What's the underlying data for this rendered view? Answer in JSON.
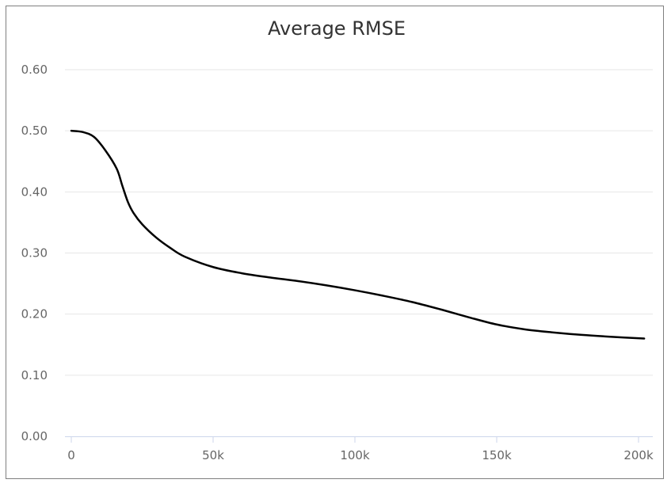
{
  "chart_data": {
    "type": "line",
    "title": "Average RMSE",
    "xlabel": "",
    "ylabel": "",
    "xlim": [
      0,
      202000
    ],
    "ylim": [
      0,
      0.6
    ],
    "grid": true,
    "y_ticks": [
      {
        "value": 0.0,
        "label": "0.00"
      },
      {
        "value": 0.1,
        "label": "0.10"
      },
      {
        "value": 0.2,
        "label": "0.20"
      },
      {
        "value": 0.3,
        "label": "0.30"
      },
      {
        "value": 0.4,
        "label": "0.40"
      },
      {
        "value": 0.5,
        "label": "0.50"
      },
      {
        "value": 0.6,
        "label": "0.60"
      }
    ],
    "x_ticks": [
      {
        "value": 0,
        "label": "0"
      },
      {
        "value": 50000,
        "label": "50k"
      },
      {
        "value": 100000,
        "label": "100k"
      },
      {
        "value": 150000,
        "label": "150k"
      },
      {
        "value": 200000,
        "label": "200k"
      }
    ],
    "series": [
      {
        "color": "#000000",
        "x": [
          0,
          4000,
          8000,
          12000,
          16000,
          18000,
          20000,
          22000,
          25000,
          30000,
          35000,
          40000,
          50000,
          60000,
          70000,
          80000,
          90000,
          100000,
          110000,
          120000,
          130000,
          140000,
          150000,
          160000,
          170000,
          180000,
          190000,
          202000
        ],
        "y": [
          0.5,
          0.498,
          0.49,
          0.468,
          0.438,
          0.41,
          0.383,
          0.365,
          0.347,
          0.325,
          0.308,
          0.294,
          0.277,
          0.267,
          0.26,
          0.254,
          0.247,
          0.239,
          0.23,
          0.22,
          0.208,
          0.195,
          0.183,
          0.175,
          0.17,
          0.166,
          0.163,
          0.16
        ]
      }
    ]
  }
}
